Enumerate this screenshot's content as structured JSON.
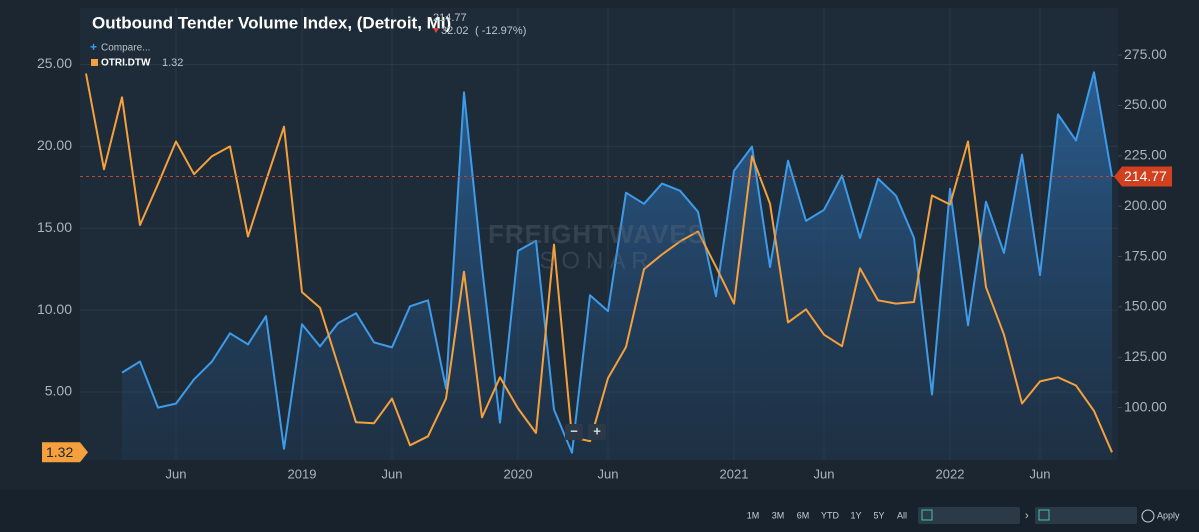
{
  "chart_data": {
    "type": "line",
    "x": [
      "2018-01",
      "2018-02",
      "2018-03",
      "2018-04",
      "2018-05",
      "2018-06",
      "2018-07",
      "2018-08",
      "2018-09",
      "2018-10",
      "2018-11",
      "2018-12",
      "2019-01",
      "2019-02",
      "2019-03",
      "2019-04",
      "2019-05",
      "2019-06",
      "2019-07",
      "2019-08",
      "2019-09",
      "2019-10",
      "2019-11",
      "2019-12",
      "2020-01",
      "2020-02",
      "2020-03",
      "2020-04",
      "2020-05",
      "2020-06",
      "2020-07",
      "2020-08",
      "2020-09",
      "2020-10",
      "2020-11",
      "2020-12",
      "2021-01",
      "2021-02",
      "2021-03",
      "2021-04",
      "2021-05",
      "2021-06",
      "2021-07",
      "2021-08",
      "2021-09",
      "2021-10",
      "2021-11",
      "2021-12",
      "2022-01",
      "2022-02",
      "2022-03",
      "2022-04",
      "2022-05",
      "2022-06",
      "2022-07",
      "2022-08",
      "2022-09",
      "2022-10"
    ],
    "series": [
      {
        "name": "Outbound Tender Volume Index, (Detroit, MI)",
        "color": "#3d9be9",
        "axis": "y2",
        "area": true,
        "values": [
          null,
          null,
          117.4,
          122.9,
          100,
          102,
          114,
          122.9,
          136.9,
          131.4,
          145.4,
          79.6,
          141.4,
          130.4,
          141.9,
          146.9,
          132.4,
          129.9,
          150.3,
          153.3,
          109.5,
          256.5,
          169.8,
          92.5,
          177.8,
          182.8,
          99,
          77.6,
          155.8,
          147.9,
          206.7,
          201.2,
          211.2,
          207.7,
          197.2,
          155.3,
          217.6,
          229.6,
          169.8,
          222.6,
          192.7,
          198.2,
          215.2,
          184.2,
          213.7,
          205.2,
          184.2,
          106.5,
          208.7,
          140.9,
          202.2,
          176.8,
          225.6,
          165.8,
          245.6,
          232.6,
          266.5,
          214.77
        ]
      },
      {
        "name": "OTRI.DTW",
        "color": "#f5a03c",
        "values": [
          24.45,
          18.6,
          23.0,
          15.2,
          17.7,
          20.3,
          18.3,
          19.4,
          20.0,
          14.5,
          17.9,
          21.2,
          11.1,
          10.15,
          6.65,
          3.15,
          3.1,
          4.6,
          1.75,
          2.3,
          4.6,
          12.35,
          3.45,
          5.9,
          4.0,
          2.5,
          14.0,
          2.25,
          2.0,
          5.85,
          7.75,
          12.5,
          13.4,
          14.2,
          14.8,
          12.65,
          10.4,
          19.4,
          16.5,
          9.25,
          10.05,
          8.5,
          7.8,
          12.55,
          10.6,
          10.4,
          10.5,
          17.0,
          16.45,
          20.3,
          11.4,
          8.5,
          4.3,
          5.65,
          5.9,
          5.4,
          3.85,
          1.32
        ]
      }
    ],
    "ylim": [
      0.85,
      28.45
    ],
    "yticks": [
      {
        "value": 5,
        "label": "5.00"
      },
      {
        "value": 10,
        "label": "10.00"
      },
      {
        "value": 15,
        "label": "15.00"
      },
      {
        "value": 20,
        "label": "20.00"
      },
      {
        "value": 25,
        "label": "25.00"
      }
    ],
    "y2lim": [
      74,
      298.4
    ],
    "y2ticks": [
      {
        "value": 100,
        "label": "100.00"
      },
      {
        "value": 125,
        "label": "125.00"
      },
      {
        "value": 150,
        "label": "150.00"
      },
      {
        "value": 175,
        "label": "175.00"
      },
      {
        "value": 200,
        "label": "200.00"
      },
      {
        "value": 225,
        "label": "225.00"
      },
      {
        "value": 250,
        "label": "250.00"
      },
      {
        "value": 275,
        "label": "275.00"
      }
    ],
    "xticks": [
      {
        "value": "2018-06",
        "label": "Jun"
      },
      {
        "value": "2019-01",
        "label": "2019"
      },
      {
        "value": "2019-06",
        "label": "Jun"
      },
      {
        "value": "2020-01",
        "label": "2020"
      },
      {
        "value": "2020-06",
        "label": "Jun"
      },
      {
        "value": "2021-01",
        "label": "2021"
      },
      {
        "value": "2021-06",
        "label": "Jun"
      },
      {
        "value": "2022-01",
        "label": "2022"
      },
      {
        "value": "2022-06",
        "label": "Jun"
      }
    ],
    "grid": true,
    "change": "32.02",
    "change_pct": "( -12.97%)"
  },
  "ui": {
    "compare": "Compare...",
    "watermark": [
      "FREIGHTWAVES",
      "SONAR"
    ],
    "zoom": [
      "−",
      "+"
    ],
    "ranges": [
      "1M",
      "3M",
      "6M",
      "YTD",
      "1Y",
      "5Y",
      "All"
    ],
    "apply": "Apply"
  }
}
